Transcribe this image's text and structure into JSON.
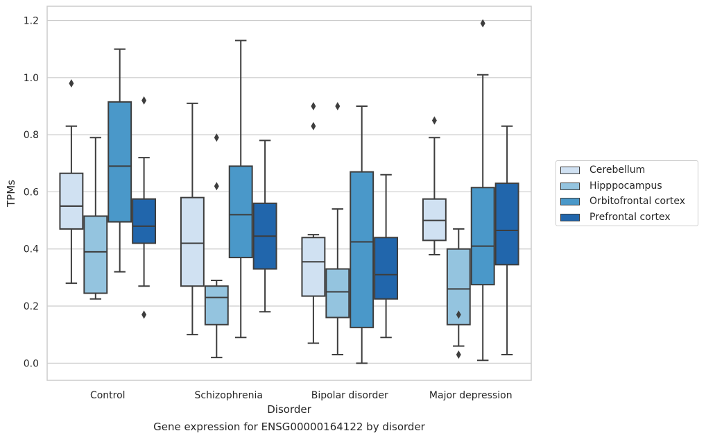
{
  "caption": "Gene expression for ENSG00000164122 by disorder",
  "chart_data": {
    "type": "box",
    "xlabel": "Disorder",
    "ylabel": "TPMs",
    "ylim": [
      -0.06,
      1.25
    ],
    "yticks": [
      0.0,
      0.2,
      0.4,
      0.6,
      0.8,
      1.0,
      1.2
    ],
    "ytick_labels": [
      "0.0",
      "0.2",
      "0.4",
      "0.6",
      "0.8",
      "1.0",
      "1.2"
    ],
    "grid": "horizontal",
    "legend_position": "right",
    "categories": [
      "Control",
      "Schizophrenia",
      "Bipolar disorder",
      "Major depression"
    ],
    "series": [
      {
        "name": "Cerebellum",
        "color": "#d0e1f2",
        "boxes": [
          {
            "whisker_low": 0.28,
            "q1": 0.47,
            "median": 0.55,
            "q3": 0.665,
            "whisker_high": 0.83,
            "outliers": [
              0.98
            ]
          },
          {
            "whisker_low": 0.1,
            "q1": 0.27,
            "median": 0.42,
            "q3": 0.58,
            "whisker_high": 0.91,
            "outliers": []
          },
          {
            "whisker_low": 0.07,
            "q1": 0.235,
            "median": 0.355,
            "q3": 0.44,
            "whisker_high": 0.45,
            "outliers": [
              0.83,
              0.9
            ]
          },
          {
            "whisker_low": 0.38,
            "q1": 0.43,
            "median": 0.5,
            "q3": 0.575,
            "whisker_high": 0.79,
            "outliers": [
              0.85
            ]
          }
        ]
      },
      {
        "name": "Hipppocampus",
        "color": "#94c4df",
        "boxes": [
          {
            "whisker_low": 0.225,
            "q1": 0.245,
            "median": 0.39,
            "q3": 0.515,
            "whisker_high": 0.79,
            "outliers": []
          },
          {
            "whisker_low": 0.02,
            "q1": 0.135,
            "median": 0.23,
            "q3": 0.27,
            "whisker_high": 0.29,
            "outliers": [
              0.62,
              0.79
            ]
          },
          {
            "whisker_low": 0.03,
            "q1": 0.16,
            "median": 0.25,
            "q3": 0.33,
            "whisker_high": 0.54,
            "outliers": [
              0.9
            ]
          },
          {
            "whisker_low": 0.06,
            "q1": 0.135,
            "median": 0.26,
            "q3": 0.4,
            "whisker_high": 0.47,
            "outliers": [
              0.03,
              0.17
            ]
          }
        ]
      },
      {
        "name": "Orbitofrontal cortex",
        "color": "#4a98c9",
        "boxes": [
          {
            "whisker_low": 0.32,
            "q1": 0.495,
            "median": 0.69,
            "q3": 0.915,
            "whisker_high": 1.1,
            "outliers": []
          },
          {
            "whisker_low": 0.09,
            "q1": 0.37,
            "median": 0.52,
            "q3": 0.69,
            "whisker_high": 1.13,
            "outliers": []
          },
          {
            "whisker_low": 0.0,
            "q1": 0.125,
            "median": 0.425,
            "q3": 0.67,
            "whisker_high": 0.9,
            "outliers": []
          },
          {
            "whisker_low": 0.01,
            "q1": 0.275,
            "median": 0.41,
            "q3": 0.615,
            "whisker_high": 1.01,
            "outliers": [
              1.19
            ]
          }
        ]
      },
      {
        "name": "Prefrontal cortex",
        "color": "#2166ac",
        "boxes": [
          {
            "whisker_low": 0.27,
            "q1": 0.42,
            "median": 0.48,
            "q3": 0.575,
            "whisker_high": 0.72,
            "outliers": [
              0.17,
              0.92
            ]
          },
          {
            "whisker_low": 0.18,
            "q1": 0.33,
            "median": 0.445,
            "q3": 0.56,
            "whisker_high": 0.78,
            "outliers": []
          },
          {
            "whisker_low": 0.09,
            "q1": 0.225,
            "median": 0.31,
            "q3": 0.44,
            "whisker_high": 0.66,
            "outliers": []
          },
          {
            "whisker_low": 0.03,
            "q1": 0.345,
            "median": 0.465,
            "q3": 0.63,
            "whisker_high": 0.83,
            "outliers": []
          }
        ]
      }
    ]
  }
}
